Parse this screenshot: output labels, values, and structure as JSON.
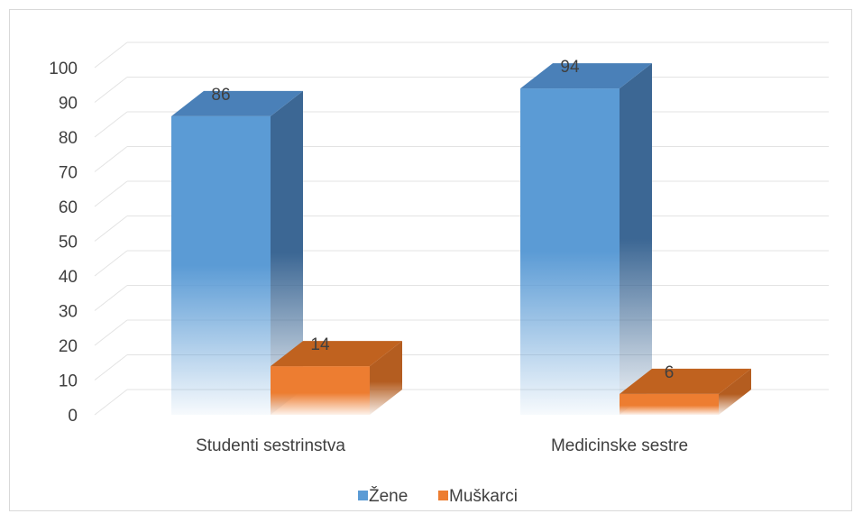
{
  "chart_data": {
    "type": "bar",
    "style": "3d-clustered-column",
    "categories": [
      "Studenti sestrinstva",
      "Medicinske sestre"
    ],
    "series": [
      {
        "name": "Žene",
        "values": [
          86,
          94
        ],
        "color": "#5b9bd5"
      },
      {
        "name": "Muškarci",
        "values": [
          14,
          6
        ],
        "color": "#ed7d31"
      }
    ],
    "data_labels": [
      [
        "86",
        "94"
      ],
      [
        "14",
        "6"
      ]
    ],
    "ylim": [
      0,
      100
    ],
    "yticks": [
      "0",
      "10",
      "20",
      "30",
      "40",
      "50",
      "60",
      "70",
      "80",
      "90",
      "100"
    ],
    "grid": true,
    "legend": "bottom",
    "title": "",
    "xlabel": "",
    "ylabel": ""
  }
}
